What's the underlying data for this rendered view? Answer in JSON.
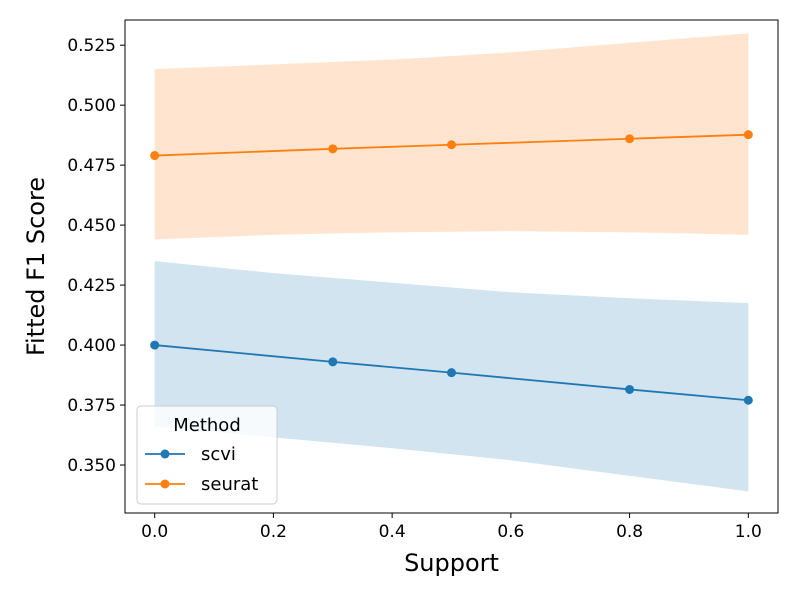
{
  "chart_data": {
    "type": "line",
    "xlabel": "Support",
    "ylabel": "Fitted F1 Score",
    "xlim": [
      -0.05,
      1.05
    ],
    "ylim": [
      0.33,
      0.5355
    ],
    "xticks": [
      0.0,
      0.2,
      0.4,
      0.6,
      0.8,
      1.0
    ],
    "xtick_labels": [
      "0.0",
      "0.2",
      "0.4",
      "0.6",
      "0.8",
      "1.0"
    ],
    "yticks": [
      0.35,
      0.375,
      0.4,
      0.425,
      0.45,
      0.475,
      0.5,
      0.525
    ],
    "ytick_labels": [
      "0.350",
      "0.375",
      "0.400",
      "0.425",
      "0.450",
      "0.475",
      "0.500",
      "0.525"
    ],
    "grid": false,
    "legend": {
      "title": "Method",
      "placement": "bottom-left"
    },
    "series": [
      {
        "name": "scvi",
        "color": "#1f77b4",
        "band_color": "#1f77b4",
        "x": [
          0.0,
          0.3,
          0.5,
          0.8,
          1.0
        ],
        "y": [
          0.4,
          0.393,
          0.3885,
          0.3815,
          0.377
        ],
        "band_x": [
          0.0,
          0.2,
          0.4,
          0.6,
          0.8,
          1.0
        ],
        "band_upper": [
          0.435,
          0.43,
          0.426,
          0.422,
          0.4195,
          0.4175
        ],
        "band_lower": [
          0.366,
          0.3615,
          0.357,
          0.352,
          0.3455,
          0.339
        ]
      },
      {
        "name": "seurat",
        "color": "#ff7f0e",
        "band_color": "#ff7f0e",
        "x": [
          0.0,
          0.3,
          0.5,
          0.8,
          1.0
        ],
        "y": [
          0.479,
          0.4818,
          0.4835,
          0.486,
          0.4877
        ],
        "band_x": [
          0.0,
          0.2,
          0.4,
          0.6,
          0.8,
          1.0
        ],
        "band_upper": [
          0.515,
          0.517,
          0.519,
          0.522,
          0.526,
          0.53
        ],
        "band_lower": [
          0.444,
          0.446,
          0.447,
          0.4475,
          0.447,
          0.446
        ]
      }
    ]
  }
}
